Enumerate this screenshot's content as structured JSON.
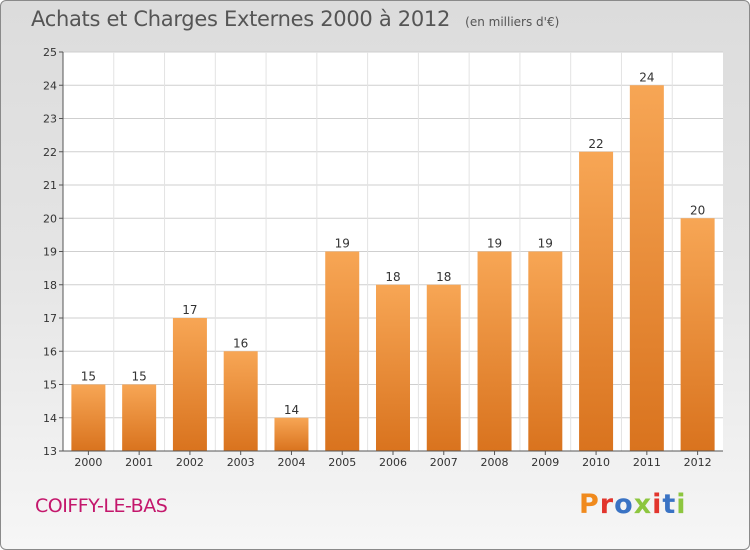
{
  "header": {
    "title": "Achats et Charges Externes 2000 à 2012",
    "subtitle": "(en milliers d'€)"
  },
  "footer": {
    "commune": "COIFFY-LE-BAS",
    "logo_text": "Proxiti",
    "logo_colors": [
      "#f08a1d",
      "#e2352d",
      "#3a73c4",
      "#8dc63f",
      "#e2352d",
      "#3a73c4",
      "#8dc63f"
    ]
  },
  "colors": {
    "bar_top": "#f7a655",
    "bar_bottom": "#d9731e",
    "commune": "#c4176c"
  },
  "chart_data": {
    "type": "bar",
    "title": "Achats et Charges Externes 2000 à 2012",
    "subtitle": "(en milliers d'€)",
    "categories": [
      "2000",
      "2001",
      "2002",
      "2003",
      "2004",
      "2005",
      "2006",
      "2007",
      "2008",
      "2009",
      "2010",
      "2011",
      "2012"
    ],
    "values": [
      15,
      15,
      17,
      16,
      14,
      19,
      18,
      18,
      19,
      19,
      22,
      24,
      20
    ],
    "ylim": [
      13,
      25
    ],
    "yticks": [
      13,
      14,
      15,
      16,
      17,
      18,
      19,
      20,
      21,
      22,
      23,
      24,
      25
    ],
    "grid": true,
    "legend": "none",
    "xlabel": "",
    "ylabel": ""
  }
}
